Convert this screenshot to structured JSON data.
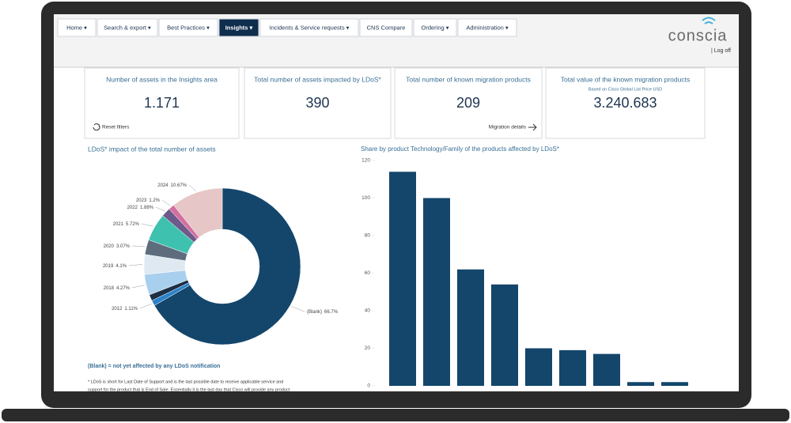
{
  "nav": {
    "items": [
      "Home ▾",
      "Search & export ▾",
      "Best Practices ▾",
      "Insights ▾",
      "Incidents & Service requests ▾",
      "CNS Compare",
      "Ordering ▾",
      "Administration ▾"
    ],
    "active": 3,
    "logo": "conscia",
    "logoff": "| Log off"
  },
  "cards": [
    {
      "title": "Number of assets in the Insights area",
      "value": "1.171",
      "link": "Reset filters"
    },
    {
      "title": "Total number of assets impacted by LDoS*",
      "value": "390"
    },
    {
      "title": "Total number of known migration products",
      "value": "209",
      "link": "Migration details"
    },
    {
      "title": "Total value of the known migration products",
      "subtitle": "Based on Cisco Global List Price USD",
      "value": "3.240.683"
    }
  ],
  "donut_chart": {
    "type": "donut",
    "title": "LDoS* impact of the total number of assets",
    "categories": [
      "(Blank)",
      "2012",
      null,
      "2018",
      "2019",
      "2020",
      "2021",
      "2022",
      "2023",
      "2024"
    ],
    "values": [
      66.7,
      1.11,
      1.28,
      4.27,
      4.1,
      3.07,
      5.72,
      1.88,
      1.2,
      10.67
    ],
    "value_labels": [
      "66.7%",
      "1.11%",
      null,
      "4.27%",
      "4.1%",
      "3.07%",
      "5.72%",
      "1.88%",
      "1.2%",
      "10.67%"
    ],
    "colors": [
      "#14466b",
      "#2b82c9",
      "#1b2f45",
      "#a9cfee",
      "#dfe9f2",
      "#5d6d7e",
      "#3fc1b0",
      "#6d5a8a",
      "#d36fa0",
      "#e6c6c6"
    ],
    "note": "(Blank) = not yet affected by any LDoS notification",
    "footnote": [
      "* LDoS is short for Last Date of Support and is the last possible date to receive applicable service and",
      "support for the product that is End of Sale. Essentially it is the last day that Cisco will provide any product"
    ]
  },
  "bar_chart": {
    "type": "bar",
    "title": "Share by product Technology/Family of the products affected by LDoS*",
    "values": [
      114,
      100,
      62,
      54,
      20,
      19,
      17,
      2,
      2
    ],
    "color": "#14466b",
    "ylim": [
      0,
      120
    ],
    "yticks": [
      0,
      20,
      40,
      60,
      80,
      100,
      120
    ]
  }
}
